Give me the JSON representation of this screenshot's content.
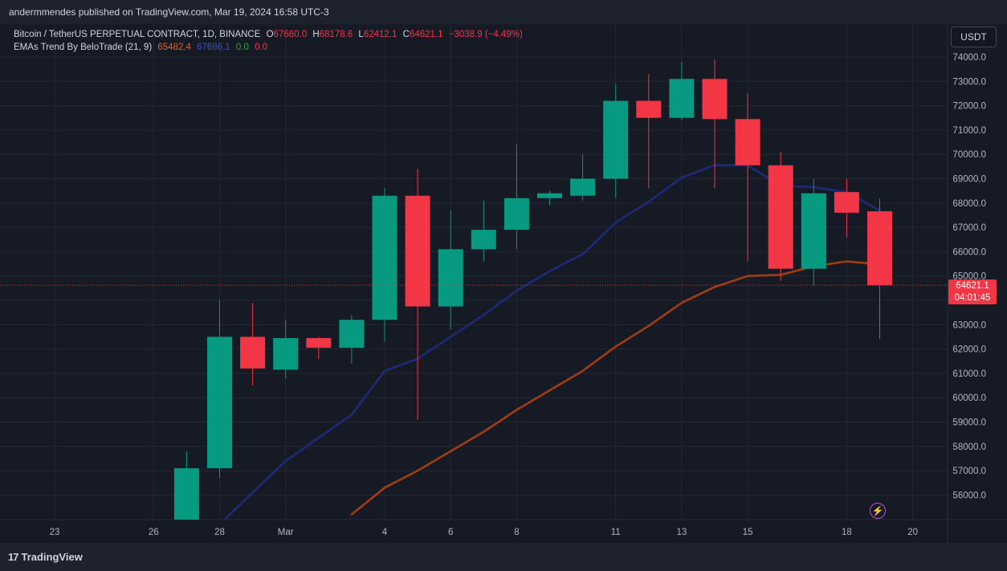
{
  "header": {
    "publisher_line": "andermmendes published on TradingView.com, Mar 19, 2024 16:58 UTC-3"
  },
  "legend": {
    "symbol": "Bitcoin / TetherUS PERPETUAL CONTRACT, 1D, BINANCE",
    "open": "67660.0",
    "high": "68178.6",
    "low": "62412.1",
    "close": "64621.1",
    "change": "−3038.9 (−4.49%)",
    "indicator_name": "EMAs Trend By BeloTrade (21, 9)",
    "indicator_values": [
      "65482.4",
      "67686.1",
      "0.0",
      "0.0"
    ]
  },
  "currency_button": "USDT",
  "last_price": {
    "price": "64621.1",
    "countdown": "04:01:45"
  },
  "footer": {
    "logo_mark": "17",
    "brand": "TradingView"
  },
  "colors": {
    "up": "#089981",
    "down": "#f23645",
    "ema_fast": "#1c2a78",
    "ema_slow": "#a23c12",
    "background": "#161a25"
  },
  "chart_data": {
    "type": "candlestick",
    "y_range": [
      55000,
      74600
    ],
    "y_ticks": [
      "74000.0",
      "73000.0",
      "72000.0",
      "71000.0",
      "70000.0",
      "69000.0",
      "68000.0",
      "67000.0",
      "66000.0",
      "65000.0",
      "64000.0",
      "63000.0",
      "62000.0",
      "61000.0",
      "60000.0",
      "59000.0",
      "58000.0",
      "57000.0",
      "56000.0"
    ],
    "x_ticks": [
      {
        "day": 0,
        "label": "23"
      },
      {
        "day": 3,
        "label": "26"
      },
      {
        "day": 5,
        "label": "28"
      },
      {
        "day": 7,
        "label": "Mar"
      },
      {
        "day": 10,
        "label": "4"
      },
      {
        "day": 12,
        "label": "6"
      },
      {
        "day": 14,
        "label": "8"
      },
      {
        "day": 17,
        "label": "11"
      },
      {
        "day": 19,
        "label": "13"
      },
      {
        "day": 21,
        "label": "15"
      },
      {
        "day": 24,
        "label": "18"
      },
      {
        "day": 26,
        "label": "20"
      }
    ],
    "candles": [
      {
        "day": 4,
        "o": 54500,
        "h": 57800,
        "l": 54300,
        "c": 57100
      },
      {
        "day": 5,
        "o": 57100,
        "h": 64000,
        "l": 56700,
        "c": 62500
      },
      {
        "day": 6,
        "o": 62500,
        "h": 63900,
        "l": 60500,
        "c": 61200
      },
      {
        "day": 7,
        "o": 61150,
        "h": 63200,
        "l": 60800,
        "c": 62450
      },
      {
        "day": 8,
        "o": 62450,
        "h": 62500,
        "l": 61600,
        "c": 62050
      },
      {
        "day": 9,
        "o": 62050,
        "h": 63400,
        "l": 61400,
        "c": 63200
      },
      {
        "day": 10,
        "o": 63200,
        "h": 68600,
        "l": 62300,
        "c": 68300
      },
      {
        "day": 11,
        "o": 68300,
        "h": 69400,
        "l": 59100,
        "c": 63750
      },
      {
        "day": 12,
        "o": 63750,
        "h": 67700,
        "l": 62800,
        "c": 66100
      },
      {
        "day": 13,
        "o": 66100,
        "h": 68100,
        "l": 65600,
        "c": 66900
      },
      {
        "day": 14,
        "o": 66900,
        "h": 70400,
        "l": 66100,
        "c": 68200
      },
      {
        "day": 15,
        "o": 68200,
        "h": 68500,
        "l": 67900,
        "c": 68400
      },
      {
        "day": 16,
        "o": 68300,
        "h": 70000,
        "l": 68100,
        "c": 69000
      },
      {
        "day": 17,
        "o": 69000,
        "h": 72900,
        "l": 68200,
        "c": 72200
      },
      {
        "day": 18,
        "o": 72200,
        "h": 73300,
        "l": 68600,
        "c": 71500
      },
      {
        "day": 19,
        "o": 71500,
        "h": 73800,
        "l": 71400,
        "c": 73100
      },
      {
        "day": 20,
        "o": 73100,
        "h": 73900,
        "l": 68600,
        "c": 71450
      },
      {
        "day": 21,
        "o": 71450,
        "h": 72500,
        "l": 65600,
        "c": 69550
      },
      {
        "day": 22,
        "o": 69550,
        "h": 70100,
        "l": 64800,
        "c": 65300
      },
      {
        "day": 23,
        "o": 65300,
        "h": 69000,
        "l": 64600,
        "c": 68400
      },
      {
        "day": 24,
        "o": 68450,
        "h": 69000,
        "l": 66600,
        "c": 67600
      },
      {
        "day": 25,
        "o": 67660,
        "h": 68178.6,
        "l": 62412.1,
        "c": 64621.1
      }
    ],
    "series": [
      {
        "x": [
          5,
          7,
          9,
          10,
          11,
          12,
          13,
          14,
          15,
          16,
          17,
          18,
          19,
          20,
          21,
          22,
          23,
          24,
          25
        ],
        "y": [
          54800,
          57400,
          59300,
          61100,
          61600,
          62500,
          63400,
          64400,
          65200,
          65900,
          67200,
          68050,
          69050,
          69550,
          69550,
          68700,
          68650,
          68450,
          67686.1
        ]
      },
      {
        "x": [
          9,
          10,
          11,
          12,
          13,
          14,
          15,
          16,
          17,
          18,
          19,
          20,
          21,
          22,
          23,
          24,
          25
        ],
        "y": [
          55200,
          56300,
          57000,
          57800,
          58600,
          59500,
          60300,
          61100,
          62100,
          62950,
          63900,
          64550,
          65000,
          65050,
          65400,
          65600,
          65482.4
        ]
      }
    ]
  }
}
